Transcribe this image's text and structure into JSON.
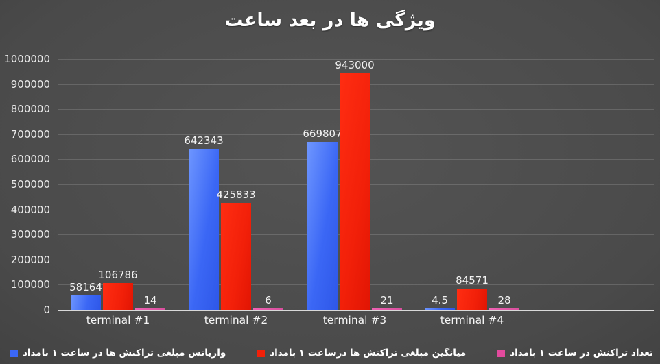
{
  "title": "ویژگی ها در بعد ساعت",
  "chart_data": {
    "type": "bar",
    "rtl": true,
    "title": "ویژگی ها در بعد ساعت",
    "categories": [
      "terminal #1",
      "terminal #2",
      "terminal #3",
      "terminal #4"
    ],
    "series": [
      {
        "name": "تعداد تراکنش در ساعت ۱ بامداد",
        "key": "count",
        "color": "#e24a9d",
        "values": [
          14,
          6,
          21,
          28
        ],
        "labels": [
          "14",
          "6",
          "21",
          "28"
        ]
      },
      {
        "name": "میانگین مبلغی تراکنش ها درساعت ۱ بامداد",
        "key": "mean",
        "color": "#f22009",
        "values": [
          106786,
          425833,
          943000,
          84571
        ],
        "labels": [
          "106786",
          "425833",
          "943000",
          "84571"
        ]
      },
      {
        "name": "واریانس مبلغی تراکنش ها در ساعت ۱ بامداد",
        "key": "variance",
        "color": "#3b67f5",
        "values": [
          58164,
          642343,
          669807,
          4.5
        ],
        "labels": [
          "58164",
          "642343",
          "669807",
          "4.5"
        ]
      }
    ],
    "ylim": [
      0,
      1000000
    ],
    "y_ticks": [
      "1000000",
      "900000",
      "800000",
      "700000",
      "600000",
      "500000",
      "400000",
      "300000",
      "200000",
      "100000",
      "0"
    ],
    "grid": true,
    "legend_position": "bottom",
    "background": "#4a4a4a",
    "text_color": "#ffffff"
  },
  "layout_note": "bars per group left-to-right: variance(blue), mean(red), count(pink)"
}
